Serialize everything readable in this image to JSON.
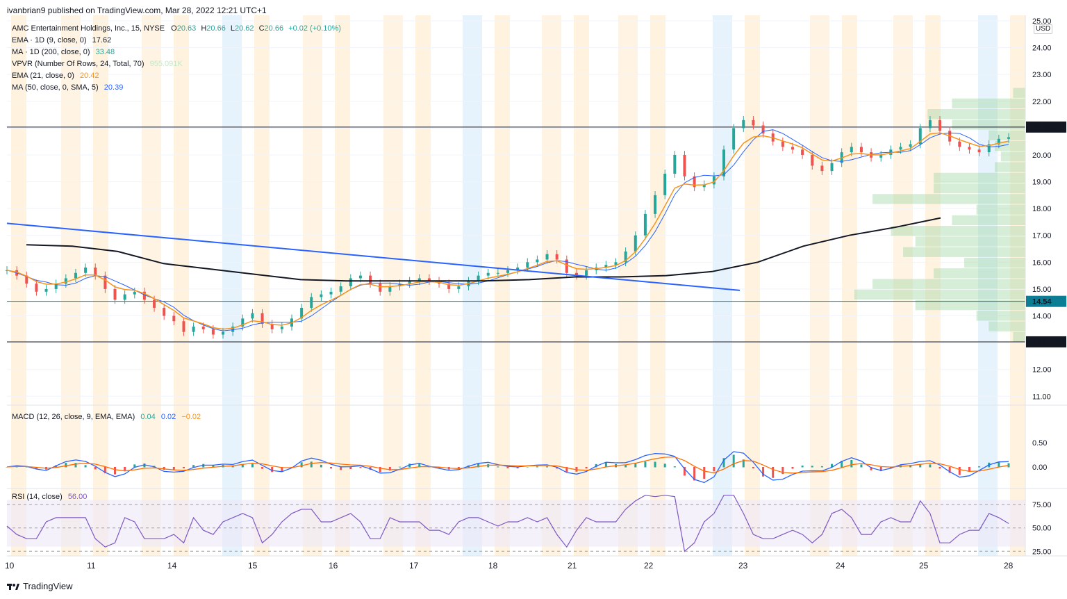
{
  "publisher": "ivanbrian9 published on TradingView.com, Mar 28, 2022 12:21 UTC+1",
  "footer_brand": "TradingView",
  "currency": "USD",
  "colors": {
    "up": "#26a69a",
    "down": "#ef5350",
    "ema9": "#f7931a",
    "ma50": "#2962ff",
    "ma200": "#131722",
    "trend": "#2962ff",
    "macd": "#2962ff",
    "signal": "#ff6d00",
    "rsi": "#7e57c2",
    "vol": "#a5d6a7",
    "us_band": "#fff3e0",
    "pre_band": "#e3f2fd"
  },
  "legend": {
    "symbol": {
      "name": "AMC Entertainment Holdings, Inc., 15, NYSE",
      "o_label": "O",
      "o": "20.63",
      "h_label": "H",
      "h": "20.66",
      "l_label": "L",
      "l": "20.62",
      "c_label": "C",
      "c": "20.66",
      "chg": "+0.02 (+0.10%)"
    },
    "ema1d": {
      "label": "EMA · 1D (9, close, 0)",
      "value": "17.62"
    },
    "ma1d": {
      "label": "MA · 1D (200, close, 0)",
      "value": "33.48"
    },
    "vpvr": {
      "label": "VPVR (Number Of Rows, 24, Total, 70)",
      "value": "955.091K"
    },
    "ema21": {
      "label": "EMA (21, close, 0)",
      "value": "20.42"
    },
    "ma50": {
      "label": "MA (50, close, 0, SMA, 5)",
      "value": "20.39"
    },
    "macd": {
      "label": "MACD (12, 26, close, 9, EMA, EMA)",
      "v1": "0.04",
      "v2": "0.02",
      "v3": "−0.02"
    },
    "rsi": {
      "label": "RSI (14, close)",
      "value": "56.00"
    }
  },
  "chart_data": {
    "type": "line",
    "x_ticks": [
      "10",
      "11",
      "14",
      "15",
      "16",
      "17",
      "18",
      "21",
      "22",
      "23",
      "24",
      "25",
      "28"
    ],
    "price_axis": [
      "25.00",
      "24.00",
      "23.00",
      "22.00",
      "21.00",
      "20.00",
      "19.00",
      "18.00",
      "17.00",
      "16.00",
      "15.00",
      "14.00",
      "13.00",
      "12.00",
      "11.00"
    ],
    "ylim": [
      10.8,
      25.0
    ],
    "horizontal_levels": [
      {
        "value": 21.04,
        "label": "21.04",
        "color": "#131722"
      },
      {
        "value": 14.54,
        "label": "14.54",
        "color": "#0b7e95"
      },
      {
        "value": 13.03,
        "label": "13.03",
        "color": "#131722"
      }
    ],
    "close_series": [
      15.7,
      15.5,
      15.2,
      14.9,
      15.0,
      15.2,
      15.4,
      15.6,
      15.8,
      15.5,
      15.0,
      14.6,
      14.8,
      14.9,
      14.6,
      14.3,
      14.0,
      13.8,
      13.4,
      13.6,
      13.5,
      13.3,
      13.4,
      13.6,
      13.9,
      14.1,
      13.7,
      13.5,
      13.6,
      13.9,
      14.3,
      14.7,
      14.8,
      14.9,
      15.1,
      15.4,
      15.5,
      15.2,
      14.9,
      15.1,
      15.2,
      15.3,
      15.4,
      15.3,
      15.2,
      15.0,
      15.1,
      15.3,
      15.5,
      15.6,
      15.6,
      15.7,
      15.8,
      16.0,
      16.1,
      16.3,
      16.1,
      15.6,
      15.5,
      15.7,
      15.8,
      15.9,
      16.0,
      16.4,
      17.0,
      17.8,
      18.5,
      19.3,
      20.0,
      19.2,
      18.8,
      18.9,
      19.2,
      20.2,
      21.0,
      21.3,
      21.1,
      20.8,
      20.5,
      20.3,
      20.2,
      20.0,
      19.6,
      19.4,
      19.7,
      20.1,
      20.3,
      20.1,
      19.9,
      20.0,
      20.2,
      20.3,
      20.4,
      21.0,
      21.3,
      20.9,
      20.5,
      20.3,
      20.2,
      20.1,
      20.4,
      20.6,
      20.66
    ],
    "ma200_series": [
      16.65,
      16.6,
      16.4,
      15.95,
      15.75,
      15.55,
      15.35,
      15.3,
      15.3,
      15.3,
      15.3,
      15.35,
      15.45,
      15.45,
      15.5,
      15.65,
      16.0,
      16.6,
      17.0,
      17.3,
      17.65
    ],
    "trendline": [
      {
        "x0": 10,
        "y0": 17.45,
        "x1": 1065,
        "y1": 14.95
      }
    ],
    "vpvr_rows": [
      0.02,
      0.12,
      0.16,
      0.12,
      0.06,
      0.05,
      0.04,
      0.05,
      0.15,
      0.15,
      0.25,
      0.08,
      0.12,
      0.22,
      0.18,
      0.2,
      0.1,
      0.15,
      0.25,
      0.28,
      0.18,
      0.08,
      0.06,
      0.02
    ],
    "macd_ylim": [
      -0.4,
      1.2
    ],
    "macd_ticks": [
      "0.50",
      "0.00"
    ],
    "rsi_ylim": [
      20,
      90
    ],
    "rsi_ticks": [
      "75.00",
      "50.00",
      "25.00"
    ],
    "rsi_bands": [
      30,
      80
    ]
  }
}
